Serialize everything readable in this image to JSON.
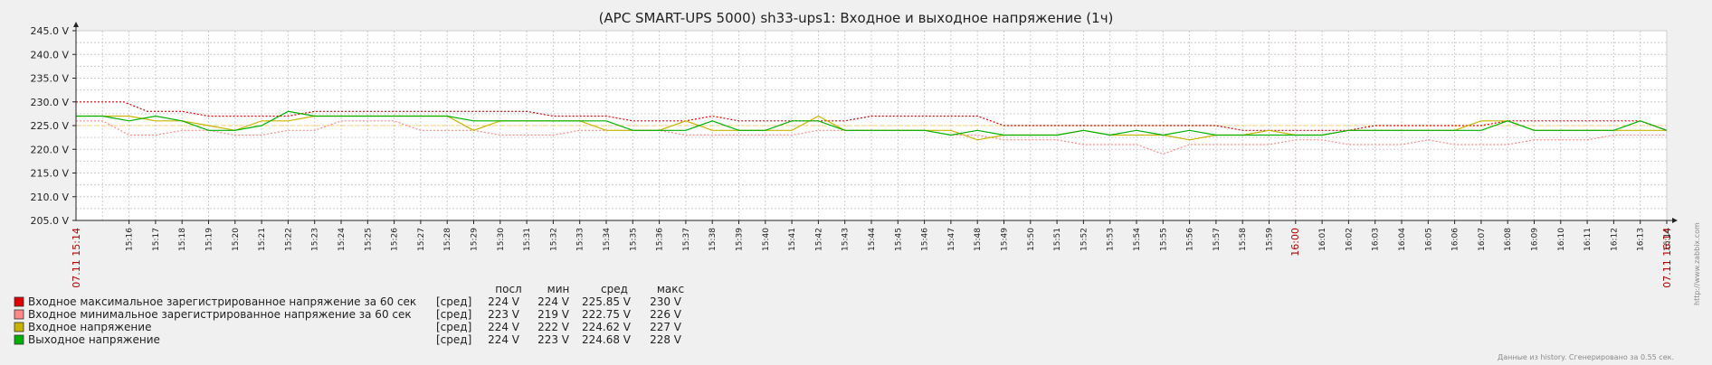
{
  "chart_data": {
    "type": "line",
    "title": "(APC SMART-UPS 5000) sh33-ups1: Входное и выходное напряжение (1ч)",
    "ylim": [
      205,
      245
    ],
    "y_ticks": [
      "245.0 V",
      "240.0 V",
      "235.0 V",
      "230.0 V",
      "225.0 V",
      "220.0 V",
      "215.0 V",
      "210.0 V",
      "205.0 V"
    ],
    "x_ticks": [
      "15:16",
      "15:17",
      "15:18",
      "15:19",
      "15:20",
      "15:21",
      "15:22",
      "15:23",
      "15:24",
      "15:25",
      "15:26",
      "15:27",
      "15:28",
      "15:29",
      "15:30",
      "15:31",
      "15:32",
      "15:33",
      "15:34",
      "15:35",
      "15:36",
      "15:37",
      "15:38",
      "15:39",
      "15:40",
      "15:41",
      "15:42",
      "15:43",
      "15:44",
      "15:45",
      "15:46",
      "15:47",
      "15:48",
      "15:49",
      "15:50",
      "15:51",
      "15:52",
      "15:53",
      "15:54",
      "15:55",
      "15:56",
      "15:57",
      "15:58",
      "15:59",
      "16:00",
      "16:01",
      "16:02",
      "16:03",
      "16:04",
      "16:05",
      "16:06",
      "16:07",
      "16:08",
      "16:09",
      "16:10",
      "16:11",
      "16:12",
      "16:13",
      "16:14"
    ],
    "x_start_label": "07.11 15:14",
    "x_end_label": "07.11 16:14",
    "grid": true,
    "legend": "bottom-left",
    "trigger_level": 225,
    "series": [
      {
        "name": "Входное максимальное зарегистрированное напряжение за 60 сек",
        "color": "#dd0000",
        "style": "dashed",
        "agg": "[сред]",
        "last": "224 V",
        "min": "224 V",
        "avg": "225.85 V",
        "max": "230 V",
        "points": [
          [
            0,
            230
          ],
          [
            1.8,
            230
          ],
          [
            2.7,
            228
          ],
          [
            4,
            228
          ],
          [
            5,
            227
          ],
          [
            8,
            227
          ],
          [
            9,
            228
          ],
          [
            17,
            228
          ],
          [
            18,
            227
          ],
          [
            20,
            227
          ],
          [
            21,
            226
          ],
          [
            23,
            226
          ],
          [
            24,
            227
          ],
          [
            25,
            226
          ],
          [
            29,
            226
          ],
          [
            30,
            227
          ],
          [
            34,
            227
          ],
          [
            35,
            225
          ],
          [
            43,
            225
          ],
          [
            44,
            224
          ],
          [
            48,
            224
          ],
          [
            49,
            225
          ],
          [
            53,
            225
          ],
          [
            54,
            226
          ],
          [
            59,
            226
          ],
          [
            59.5,
            225
          ],
          [
            60,
            224
          ]
        ]
      },
      {
        "name": "Входное минимальное зарегистрированное напряжение за 60 сек",
        "color": "#ff8888",
        "style": "dashed",
        "agg": "[сред]",
        "last": "223 V",
        "min": "219 V",
        "avg": "222.75 V",
        "max": "226 V",
        "points": [
          [
            0,
            226
          ],
          [
            1,
            226
          ],
          [
            2,
            223
          ],
          [
            3,
            223
          ],
          [
            4,
            224
          ],
          [
            5,
            224
          ],
          [
            6,
            223
          ],
          [
            7,
            223
          ],
          [
            8,
            224
          ],
          [
            9,
            224
          ],
          [
            10,
            226
          ],
          [
            12,
            226
          ],
          [
            13,
            224
          ],
          [
            15,
            224
          ],
          [
            16,
            223
          ],
          [
            18,
            223
          ],
          [
            19,
            224
          ],
          [
            22,
            224
          ],
          [
            23,
            223
          ],
          [
            27,
            223
          ],
          [
            28,
            224
          ],
          [
            32,
            224
          ],
          [
            33,
            223
          ],
          [
            34,
            223
          ],
          [
            35,
            222
          ],
          [
            37,
            222
          ],
          [
            38,
            221
          ],
          [
            40,
            221
          ],
          [
            41,
            219
          ],
          [
            42,
            221
          ],
          [
            45,
            221
          ],
          [
            46,
            222
          ],
          [
            47,
            222
          ],
          [
            48,
            221
          ],
          [
            50,
            221
          ],
          [
            51,
            222
          ],
          [
            52,
            221
          ],
          [
            54,
            221
          ],
          [
            55,
            222
          ],
          [
            57,
            222
          ],
          [
            58,
            223
          ],
          [
            60,
            223
          ]
        ]
      },
      {
        "name": "Входное напряжение",
        "color": "#c8b400",
        "style": "solid",
        "agg": "[сред]",
        "last": "224 V",
        "min": "222 V",
        "avg": "224.62 V",
        "max": "227 V",
        "points": [
          [
            0,
            227
          ],
          [
            2,
            227
          ],
          [
            3,
            226
          ],
          [
            4,
            226
          ],
          [
            5,
            225
          ],
          [
            6,
            224
          ],
          [
            7,
            226
          ],
          [
            8,
            226
          ],
          [
            9,
            227
          ],
          [
            10,
            227
          ],
          [
            14,
            227
          ],
          [
            15,
            224
          ],
          [
            16,
            226
          ],
          [
            17,
            226
          ],
          [
            18,
            226
          ],
          [
            19,
            226
          ],
          [
            20,
            224
          ],
          [
            21,
            224
          ],
          [
            22,
            224
          ],
          [
            23,
            226
          ],
          [
            24,
            224
          ],
          [
            25,
            224
          ],
          [
            26,
            224
          ],
          [
            27,
            224
          ],
          [
            28,
            227
          ],
          [
            29,
            224
          ],
          [
            30,
            224
          ],
          [
            31,
            224
          ],
          [
            32,
            224
          ],
          [
            33,
            224
          ],
          [
            34,
            222
          ],
          [
            35,
            223
          ],
          [
            36,
            223
          ],
          [
            37,
            223
          ],
          [
            38,
            224
          ],
          [
            39,
            223
          ],
          [
            40,
            223
          ],
          [
            41,
            223
          ],
          [
            42,
            222
          ],
          [
            43,
            223
          ],
          [
            44,
            223
          ],
          [
            45,
            224
          ],
          [
            46,
            223
          ],
          [
            47,
            223
          ],
          [
            48,
            224
          ],
          [
            49,
            224
          ],
          [
            50,
            224
          ],
          [
            51,
            224
          ],
          [
            52,
            224
          ],
          [
            53,
            226
          ],
          [
            54,
            226
          ],
          [
            55,
            224
          ],
          [
            56,
            224
          ],
          [
            57,
            224
          ],
          [
            58,
            224
          ],
          [
            59,
            224
          ],
          [
            60,
            224
          ]
        ]
      },
      {
        "name": "Выходное напряжение",
        "color": "#00b000",
        "style": "solid",
        "agg": "[сред]",
        "last": "224 V",
        "min": "223 V",
        "avg": "224.68 V",
        "max": "228 V",
        "points": [
          [
            0,
            227
          ],
          [
            1,
            227
          ],
          [
            2,
            226
          ],
          [
            3,
            227
          ],
          [
            4,
            226
          ],
          [
            5,
            224
          ],
          [
            6,
            224
          ],
          [
            7,
            225
          ],
          [
            8,
            228
          ],
          [
            9,
            227
          ],
          [
            14,
            227
          ],
          [
            15,
            226
          ],
          [
            20,
            226
          ],
          [
            21,
            224
          ],
          [
            23,
            224
          ],
          [
            24,
            226
          ],
          [
            25,
            224
          ],
          [
            26,
            224
          ],
          [
            27,
            226
          ],
          [
            28,
            226
          ],
          [
            29,
            224
          ],
          [
            30,
            224
          ],
          [
            31,
            224
          ],
          [
            32,
            224
          ],
          [
            33,
            223
          ],
          [
            34,
            224
          ],
          [
            35,
            223
          ],
          [
            36,
            223
          ],
          [
            37,
            223
          ],
          [
            38,
            224
          ],
          [
            39,
            223
          ],
          [
            40,
            224
          ],
          [
            41,
            223
          ],
          [
            42,
            224
          ],
          [
            43,
            223
          ],
          [
            44,
            223
          ],
          [
            45,
            223
          ],
          [
            46,
            223
          ],
          [
            47,
            223
          ],
          [
            48,
            224
          ],
          [
            49,
            224
          ],
          [
            50,
            224
          ],
          [
            51,
            224
          ],
          [
            52,
            224
          ],
          [
            53,
            224
          ],
          [
            54,
            226
          ],
          [
            55,
            224
          ],
          [
            56,
            224
          ],
          [
            57,
            224
          ],
          [
            58,
            224
          ],
          [
            59,
            226
          ],
          [
            60,
            224
          ]
        ]
      }
    ]
  },
  "legend_headers": {
    "last": "посл",
    "min": "мин",
    "avg": "сред",
    "max": "макс"
  },
  "watermark": "http://www.zabbix.com",
  "footer": "Данные из history. Сгенерировано за 0.55 сек.",
  "colors": {
    "background": "#f0f0f0",
    "plot_bg": "#ffffff",
    "grid": "#cccccc",
    "axis": "#222222",
    "trigger": "#ffcc66"
  }
}
